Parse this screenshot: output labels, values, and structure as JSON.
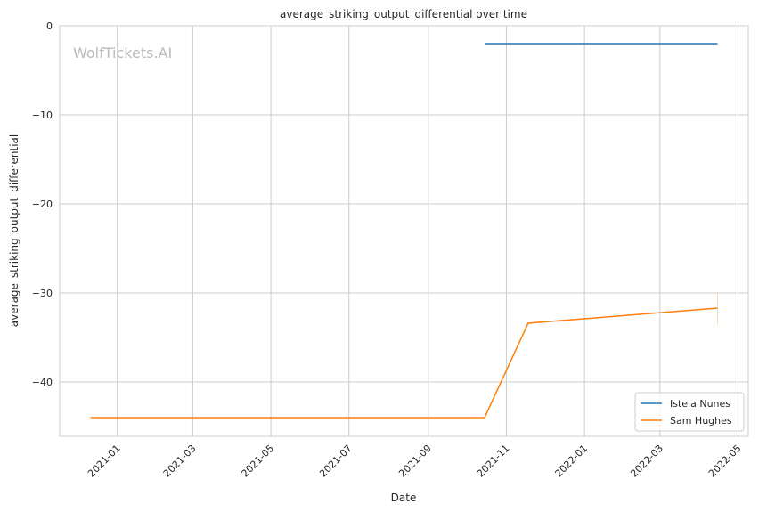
{
  "chart_data": {
    "type": "line",
    "title": "average_striking_output_differential over time",
    "xlabel": "Date",
    "ylabel": "average_striking_output_differential",
    "watermark": "WolfTickets.AI",
    "xlim": [
      "2020-11-17",
      "2022-05-09"
    ],
    "ylim": [
      -46.1,
      0
    ],
    "x_ticks": [
      "2021-01",
      "2021-03",
      "2021-05",
      "2021-07",
      "2021-09",
      "2021-11",
      "2022-01",
      "2022-03",
      "2022-05"
    ],
    "y_ticks": [
      0,
      -10,
      -20,
      -30,
      -40
    ],
    "y_tick_labels": [
      "0",
      "−10",
      "−20",
      "−30",
      "−40"
    ],
    "grid": true,
    "legend_position": "bottom-right",
    "series": [
      {
        "name": "Istela Nunes",
        "color": "#1f77b4",
        "x": [
          "2021-10-15",
          "2022-04-15"
        ],
        "y": [
          -2,
          -2
        ]
      },
      {
        "name": "Sam Hughes",
        "color": "#ff7f0e",
        "x": [
          "2020-12-11",
          "2021-10-15",
          "2021-11-18",
          "2022-04-15"
        ],
        "y": [
          -44,
          -44,
          -33.4,
          -31.7
        ],
        "ci_at_last": [
          -30,
          -33.6
        ]
      }
    ]
  }
}
